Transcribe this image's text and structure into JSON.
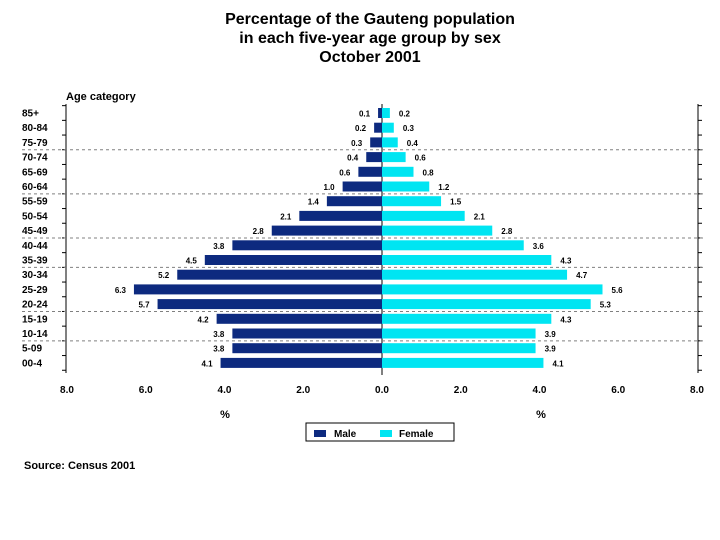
{
  "title": {
    "line1": "Percentage of the Gauteng population",
    "line2": "in each five-year age group by sex",
    "line3": "October 2001"
  },
  "source": "Source: Census 2001",
  "colors": {
    "male": "#0d2a7f",
    "female": "#00e5f2",
    "grid": "#808080"
  },
  "chart_data": {
    "type": "bar",
    "orientation": "horizontal-population-pyramid",
    "y_axis_title": "Age category",
    "categories": [
      "85+",
      "80-84",
      "75-79",
      "70-74",
      "65-69",
      "60-64",
      "55-59",
      "50-54",
      "45-49",
      "40-44",
      "35-39",
      "30-34",
      "25-29",
      "20-24",
      "15-19",
      "10-14",
      "5-09",
      "00-4"
    ],
    "series": [
      {
        "name": "Male",
        "values": [
          0.1,
          0.2,
          0.3,
          0.4,
          0.6,
          1.0,
          1.4,
          2.1,
          2.8,
          3.8,
          4.5,
          5.2,
          6.3,
          5.7,
          4.2,
          3.8,
          3.8,
          4.1
        ]
      },
      {
        "name": "Female",
        "values": [
          0.2,
          0.3,
          0.4,
          0.6,
          0.8,
          1.2,
          1.5,
          2.1,
          2.8,
          3.6,
          4.3,
          4.7,
          5.6,
          5.3,
          4.3,
          3.9,
          3.9,
          4.1
        ]
      }
    ],
    "value_labels": {
      "Male": [
        "0.1",
        "0.2",
        "0.3",
        "0.4",
        "0.6",
        "1.0",
        "1.4",
        "2.1",
        "2.8",
        "3.8",
        "4.5",
        "5.2",
        "6.3",
        "5.7",
        "4.2",
        "3.8",
        "3.8",
        "4.1"
      ],
      "Female": [
        "0.2",
        "0.3",
        "0.4",
        "0.6",
        "0.8",
        "1.2",
        "1.5",
        "2.1",
        "2.8",
        "3.6",
        "4.3",
        "4.7",
        "5.6",
        "5.3",
        "4.3",
        "3.9",
        "3.9",
        "4.1"
      ]
    },
    "x_ticks": [
      "8.0",
      "6.0",
      "4.0",
      "2.0",
      "0.0",
      "2.0",
      "4.0",
      "6.0",
      "8.0"
    ],
    "x_range": [
      -8,
      8
    ],
    "x_unit_labels": [
      "%",
      "%"
    ],
    "legend": [
      "Male",
      "Female"
    ],
    "legend_position": "bottom-center",
    "dashed_separators_after": [
      "75-79",
      "60-64",
      "45-49",
      "35-39",
      "20-24",
      "10-14"
    ]
  }
}
